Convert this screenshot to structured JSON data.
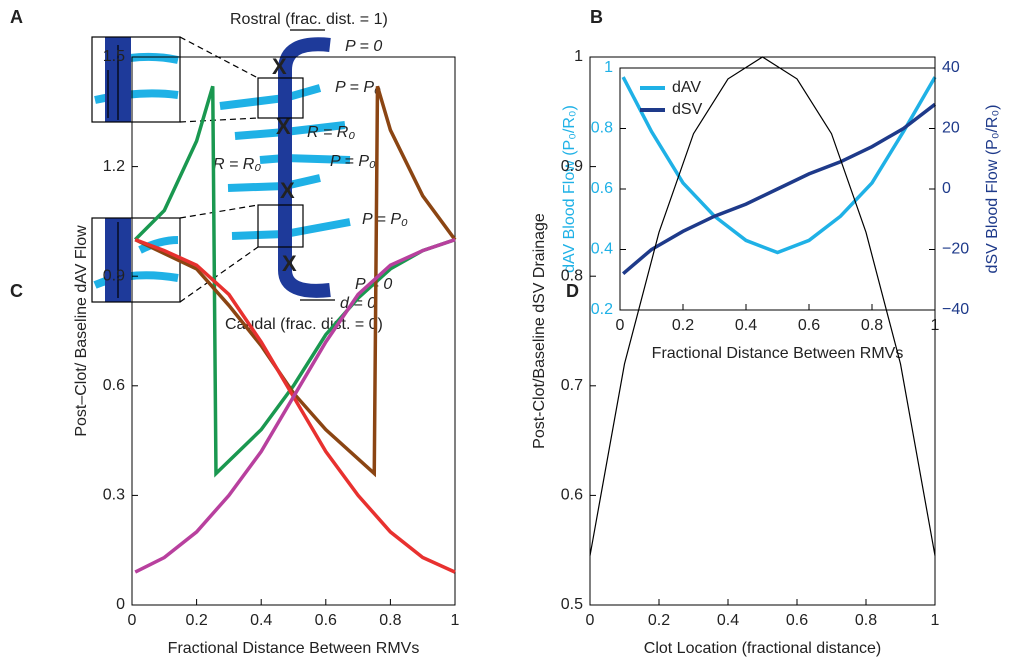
{
  "diagram": {
    "panel": "A",
    "labels": [
      "Rostral (frac. dist. = 1)",
      "P = 0",
      "P = P₀",
      "R = R₀",
      "R = R₀",
      "P = P₀",
      "P = P₀",
      "P = 0",
      "d = 0",
      "Caudal (frac. dist. = 0)"
    ]
  },
  "chart_data": [
    {
      "type": "line",
      "panel": "B",
      "xlabel": "Fractional Distance Between RMVs",
      "ylabel": "dAV Blood Flow (P₀/R₀)",
      "y2label": "dSV Blood Flow (P₀/R₀)",
      "x": [
        0.01,
        0.1,
        0.2,
        0.3,
        0.4,
        0.5,
        0.6,
        0.7,
        0.8,
        0.9,
        1
      ],
      "series": [
        {
          "name": "dAV",
          "color": "#1fb1e6",
          "values": [
            0.97,
            0.79,
            0.62,
            0.51,
            0.43,
            0.39,
            0.43,
            0.51,
            0.62,
            0.79,
            0.97
          ]
        },
        {
          "name": "dSV",
          "color": "#1e3a8a",
          "axis": "y2",
          "values": [
            -28,
            -20,
            -14,
            -9,
            -5,
            0,
            5,
            9,
            14,
            20,
            28
          ]
        }
      ],
      "xlim": [
        0,
        1
      ],
      "xticks": [
        0,
        0.2,
        0.4,
        0.6,
        0.8,
        1
      ],
      "ylim": [
        0.2,
        1
      ],
      "yticks": [
        0.2,
        0.4,
        0.6,
        0.8,
        1
      ],
      "y2lim": [
        -40,
        40
      ],
      "y2ticks": [
        {
          "value": -40,
          "label": "−40"
        },
        {
          "value": -20,
          "label": "−20"
        },
        0,
        20,
        40
      ],
      "legend": "upper left"
    },
    {
      "type": "line",
      "panel": "C",
      "xlabel": "Fractional Distance Between RMVs",
      "ylabel": "Post–Clot/ Baseline dAV Flow",
      "series": [
        {
          "color": "#1a9850",
          "x": [
            0.01,
            0.1,
            0.2,
            0.25,
            0.26,
            0.4,
            0.5,
            0.6,
            0.7,
            0.8,
            0.9,
            1
          ],
          "values": [
            1.0,
            1.08,
            1.27,
            1.42,
            0.36,
            0.48,
            0.6,
            0.74,
            0.84,
            0.92,
            0.97,
            1.0
          ]
        },
        {
          "color": "#8b4513",
          "x": [
            0.01,
            0.2,
            0.3,
            0.4,
            0.5,
            0.6,
            0.75,
            0.76,
            0.8,
            0.9,
            1
          ],
          "values": [
            1.0,
            0.92,
            0.82,
            0.71,
            0.58,
            0.48,
            0.36,
            1.42,
            1.3,
            1.12,
            1.0
          ]
        },
        {
          "color": "#e8312f",
          "x": [
            0.01,
            0.1,
            0.2,
            0.3,
            0.4,
            0.5,
            0.6,
            0.7,
            0.8,
            0.9,
            1
          ],
          "values": [
            1.0,
            0.97,
            0.93,
            0.85,
            0.72,
            0.57,
            0.42,
            0.3,
            0.2,
            0.13,
            0.09
          ]
        },
        {
          "color": "#b8409e",
          "x": [
            0.01,
            0.1,
            0.2,
            0.3,
            0.4,
            0.5,
            0.6,
            0.7,
            0.8,
            0.9,
            1
          ],
          "values": [
            0.09,
            0.13,
            0.2,
            0.3,
            0.42,
            0.57,
            0.72,
            0.85,
            0.93,
            0.97,
            1.0
          ]
        }
      ],
      "xlim": [
        0,
        1
      ],
      "xticks": [
        0,
        0.2,
        0.4,
        0.6,
        0.8,
        1
      ],
      "ylim": [
        0,
        1.5
      ],
      "yticks": [
        0,
        0.3,
        0.6,
        0.9,
        1.2,
        1.5
      ]
    },
    {
      "type": "line",
      "panel": "D",
      "xlabel": "Clot Location (fractional distance)",
      "ylabel": "Post-Clot/Baseline dSV Drainage",
      "x": [
        0,
        0.1,
        0.2,
        0.3,
        0.4,
        0.5,
        0.6,
        0.7,
        0.8,
        0.9,
        1
      ],
      "series": [
        {
          "color": "#000000",
          "values": [
            0.545,
            0.72,
            0.84,
            0.93,
            0.98,
            1.0,
            0.98,
            0.93,
            0.84,
            0.72,
            0.545
          ]
        }
      ],
      "xlim": [
        0,
        1
      ],
      "xticks": [
        0,
        0.2,
        0.4,
        0.6,
        0.8,
        1
      ],
      "ylim": [
        0.5,
        1
      ],
      "yticks": [
        0.5,
        0.6,
        0.7,
        0.8,
        0.9,
        1
      ]
    }
  ]
}
